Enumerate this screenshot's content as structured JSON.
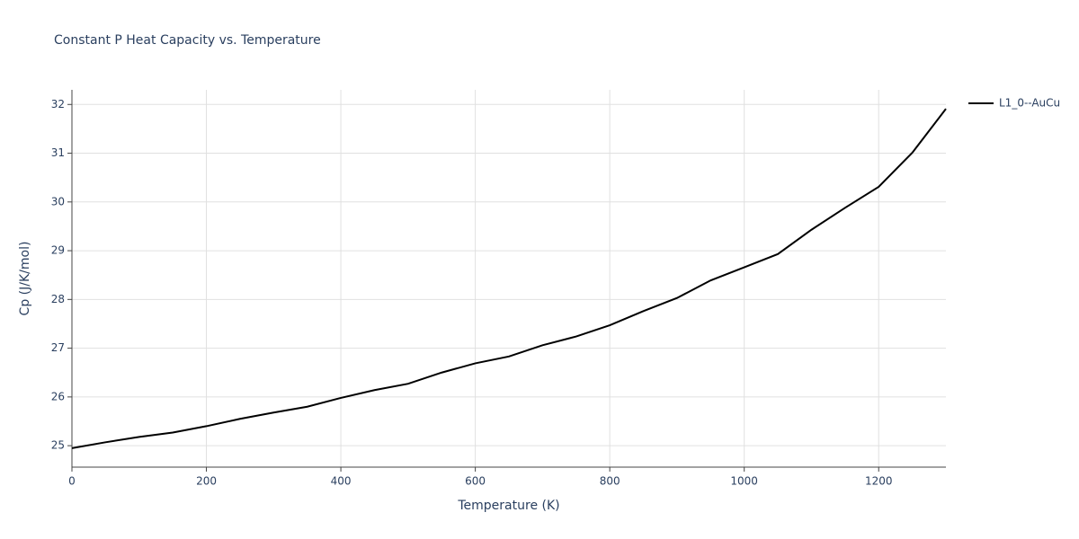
{
  "chart_data": {
    "type": "line",
    "title": "Constant P Heat Capacity vs. Temperature",
    "x_label": "Temperature (K)",
    "y_label": "Cp (J/K/mol)",
    "x": [
      0,
      50,
      100,
      150,
      200,
      250,
      300,
      350,
      400,
      450,
      500,
      550,
      600,
      650,
      700,
      750,
      800,
      850,
      900,
      950,
      1000,
      1050,
      1100,
      1150,
      1200,
      1250,
      1300
    ],
    "series": [
      {
        "name": "L1_0--AuCu",
        "color": "#000000",
        "values": [
          24.95,
          25.07,
          25.18,
          25.27,
          25.4,
          25.55,
          25.68,
          25.8,
          25.98,
          26.14,
          26.27,
          26.5,
          26.69,
          26.83,
          27.06,
          27.24,
          27.47,
          27.76,
          28.03,
          28.39,
          28.66,
          28.93,
          29.43,
          29.88,
          30.31,
          31.01,
          31.91
        ]
      }
    ],
    "xlim": [
      0,
      1300
    ],
    "xticks": [
      0,
      200,
      400,
      600,
      800,
      1000,
      1200
    ],
    "ylim": [
      24.56,
      32.3
    ],
    "yticks": [
      25,
      26,
      27,
      28,
      29,
      30,
      31,
      32
    ],
    "grid": true,
    "legend": "right"
  }
}
